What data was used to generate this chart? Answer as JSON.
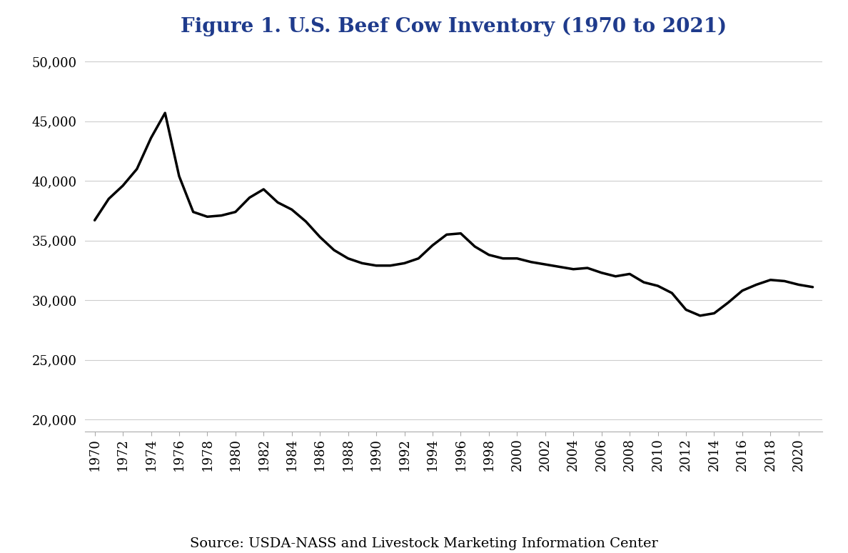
{
  "title": "Figure 1. U.S. Beef Cow Inventory (1970 to 2021)",
  "source_text": "Source: USDA-NASS and Livestock Marketing Information Center",
  "years": [
    1970,
    1971,
    1972,
    1973,
    1974,
    1975,
    1976,
    1977,
    1978,
    1979,
    1980,
    1981,
    1982,
    1983,
    1984,
    1985,
    1986,
    1987,
    1988,
    1989,
    1990,
    1991,
    1992,
    1993,
    1994,
    1995,
    1996,
    1997,
    1998,
    1999,
    2000,
    2001,
    2002,
    2003,
    2004,
    2005,
    2006,
    2007,
    2008,
    2009,
    2010,
    2011,
    2012,
    2013,
    2014,
    2015,
    2016,
    2017,
    2018,
    2019,
    2020,
    2021
  ],
  "values": [
    36700,
    38500,
    39600,
    41000,
    43600,
    45700,
    40400,
    37400,
    37000,
    37100,
    37400,
    38600,
    39300,
    38200,
    37600,
    36600,
    35300,
    34200,
    33500,
    33100,
    32900,
    32900,
    33100,
    33500,
    34600,
    35500,
    35600,
    34500,
    33800,
    33500,
    33500,
    33200,
    33000,
    32800,
    32600,
    32700,
    32300,
    32000,
    32200,
    31500,
    31200,
    30600,
    29200,
    28700,
    28900,
    29800,
    30800,
    31300,
    31700,
    31600,
    31300,
    31100
  ],
  "ylim": [
    19000,
    51000
  ],
  "yticks": [
    20000,
    25000,
    30000,
    35000,
    40000,
    45000,
    50000
  ],
  "xtick_years": [
    1970,
    1972,
    1974,
    1976,
    1978,
    1980,
    1982,
    1984,
    1986,
    1988,
    1990,
    1992,
    1994,
    1996,
    1998,
    2000,
    2002,
    2004,
    2006,
    2008,
    2010,
    2012,
    2014,
    2016,
    2018,
    2020
  ],
  "line_color": "#000000",
  "line_width": 2.5,
  "title_color": "#1F3B8C",
  "title_fontsize": 20,
  "background_color": "#ffffff",
  "grid_color": "#cccccc",
  "tick_label_fontsize": 13,
  "source_fontsize": 14
}
